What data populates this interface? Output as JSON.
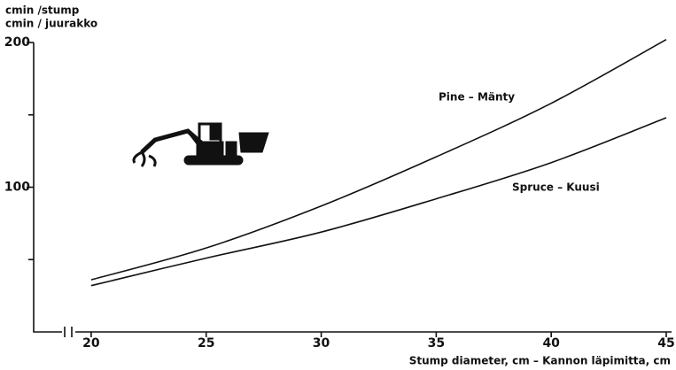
{
  "chart_data": {
    "type": "line",
    "y_label_lines": [
      "cmin /stump",
      "cmin / juurakko"
    ],
    "x_label": "Stump diameter, cm – Kannon läpimitta, cm",
    "x": [
      20,
      25,
      30,
      35,
      40,
      45
    ],
    "series": [
      {
        "name": "Pine – Mänty",
        "color": "#111111",
        "values": [
          36,
          58,
          87,
          121,
          158,
          202
        ]
      },
      {
        "name": "Spruce – Kuusi",
        "color": "#111111",
        "values": [
          32,
          51,
          69,
          92,
          117,
          148
        ]
      }
    ],
    "xlim": [
      17.5,
      45
    ],
    "xticks": [
      20,
      25,
      30,
      35,
      40,
      45
    ],
    "ylim": [
      0,
      200
    ],
    "yticks": [
      100,
      200
    ],
    "yminor_ticks": [
      50,
      150
    ]
  }
}
